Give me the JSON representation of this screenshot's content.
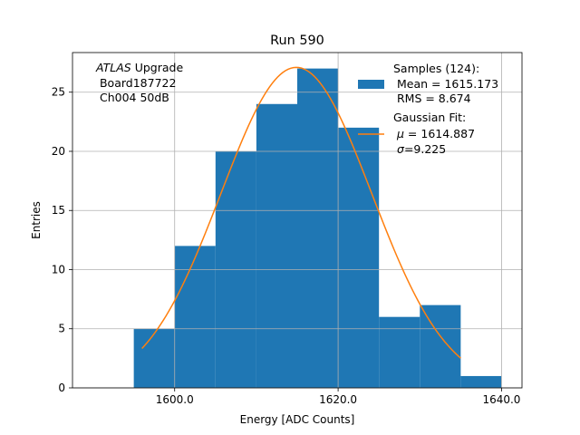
{
  "chart_data": {
    "type": "bar",
    "title": "Run 590",
    "xlabel": "Energy [ADC Counts]",
    "ylabel": "Entries",
    "xlim": [
      1587.5,
      1642.5
    ],
    "ylim": [
      0,
      28.35
    ],
    "grid": true,
    "x_ticks": [
      1600,
      1620,
      1640
    ],
    "x_tick_labels": [
      "1600.0",
      "1620.0",
      "1640.0"
    ],
    "y_ticks": [
      0,
      5,
      10,
      15,
      20,
      25
    ],
    "y_tick_labels": [
      "0",
      "5",
      "10",
      "15",
      "20",
      "25"
    ],
    "histogram": {
      "bin_edges": [
        1595,
        1600,
        1605,
        1610,
        1615,
        1620,
        1625,
        1630,
        1635,
        1640
      ],
      "counts": [
        5,
        12,
        20,
        24,
        27,
        22,
        6,
        7,
        1
      ],
      "color": "#1f77b4"
    },
    "fit": {
      "name": "Gaussian Fit",
      "mu": 1614.887,
      "sigma": 9.225,
      "amplitude": 27.1,
      "x_range": [
        1596,
        1635
      ],
      "color": "#ff7f0e"
    },
    "annotation": {
      "line1_italic": "ATLAS",
      "line1_rest": " Upgrade",
      "line2": " Board187722",
      "line3": " Ch004 50dB"
    },
    "legend": {
      "location": "upper right",
      "samples_title": "Samples (124):",
      "samples_mean": " Mean = 1615.173",
      "samples_rms": " RMS = 8.674",
      "fit_title": "Gaussian Fit:",
      "fit_mu_symbol": "μ",
      "fit_mu_value": " = 1614.887",
      "fit_sigma_symbol": "σ",
      "fit_sigma_value": "=9.225"
    }
  }
}
